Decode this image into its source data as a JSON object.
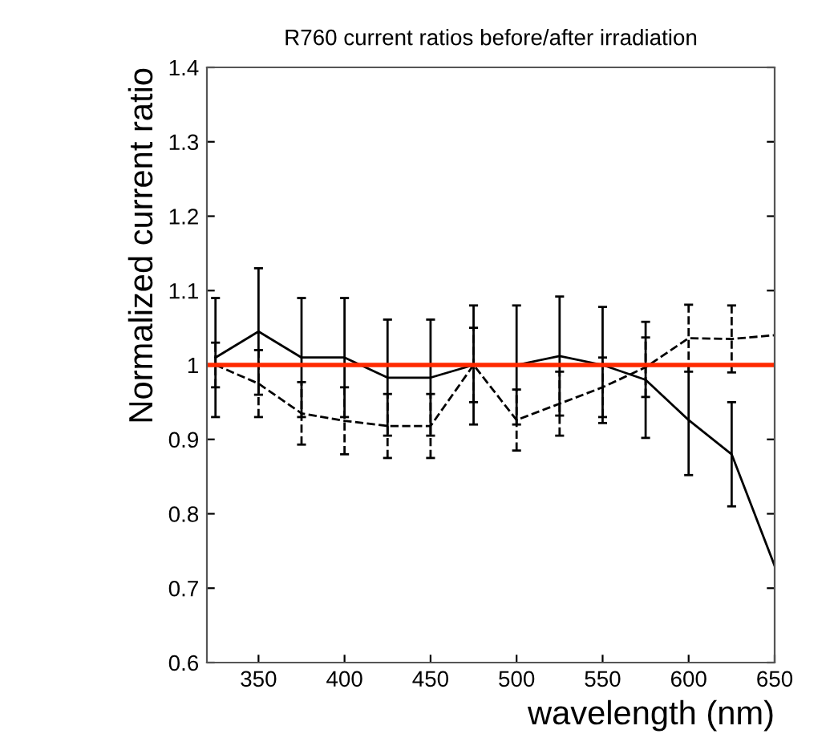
{
  "chart_data": {
    "type": "line",
    "title": "R760 current ratios before/after irradiation",
    "xlabel": "wavelength (nm)",
    "ylabel": "Normalized current ratio",
    "x": [
      325,
      350,
      375,
      400,
      425,
      450,
      475,
      500,
      525,
      550,
      575,
      600,
      625,
      650
    ],
    "series": [
      {
        "color": "#000000",
        "line_style": "solid",
        "values": [
          1.01,
          1.045,
          1.01,
          1.01,
          0.983,
          0.983,
          1.0,
          1.0,
          1.012,
          1.0,
          0.98,
          0.926,
          0.88,
          0.73
        ],
        "errors": [
          0.08,
          0.085,
          0.08,
          0.08,
          0.078,
          0.078,
          0.08,
          0.08,
          0.08,
          0.078,
          0.078,
          0.074,
          0.07,
          null
        ]
      },
      {
        "color": "#000000",
        "line_style": "dashed",
        "values": [
          1.0,
          0.975,
          0.935,
          0.925,
          0.918,
          0.918,
          1.0,
          0.926,
          0.948,
          0.97,
          0.997,
          1.036,
          1.035,
          1.04
        ],
        "errors": [
          0.03,
          0.045,
          0.042,
          0.045,
          0.043,
          0.043,
          0.05,
          0.041,
          0.043,
          0.04,
          0.04,
          0.045,
          0.045,
          null
        ]
      }
    ],
    "xlim": [
      320,
      650
    ],
    "xticks": [
      350,
      400,
      450,
      500,
      550,
      600,
      650
    ],
    "ylim": [
      0.6,
      1.4
    ],
    "yticks": [
      0.6,
      0.7,
      0.8,
      0.9,
      1,
      1.1,
      1.2,
      1.3,
      1.4
    ],
    "ref_lines": [
      {
        "axis": "y",
        "value": 1,
        "color": "#ff2a00"
      }
    ],
    "grid": false,
    "legend": false
  }
}
